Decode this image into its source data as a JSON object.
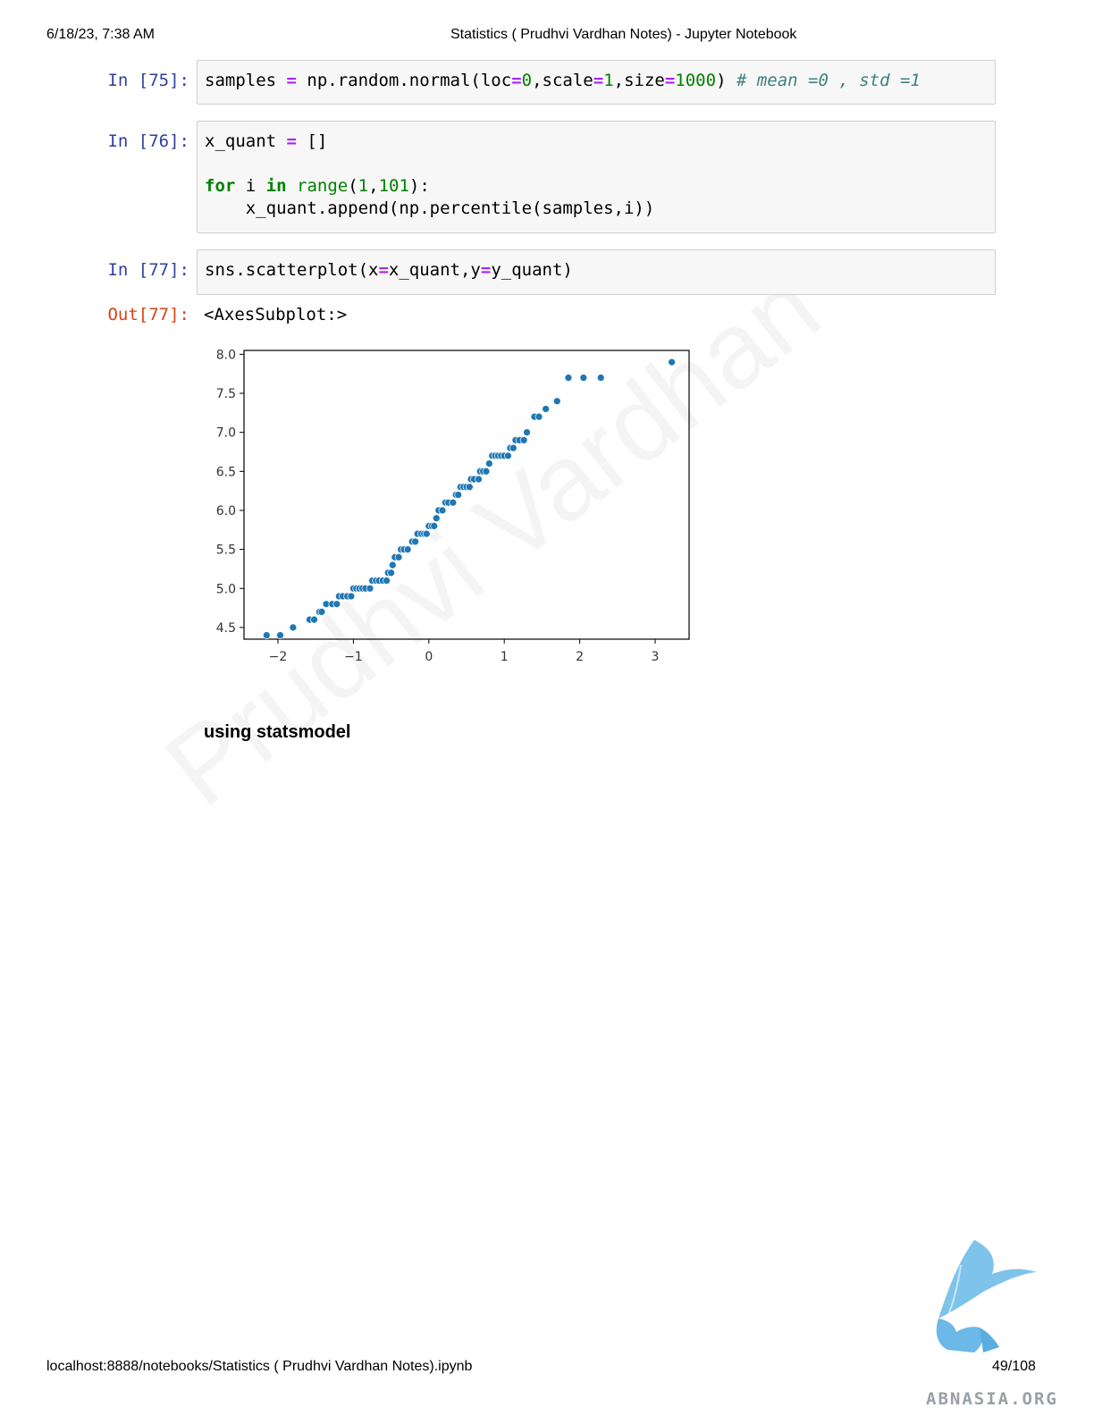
{
  "header": {
    "datetime": "6/18/23, 7:38 AM",
    "title": "Statistics ( Prudhvi Vardhan Notes) - Jupyter Notebook"
  },
  "footer": {
    "url": "localhost:8888/notebooks/Statistics ( Prudhvi Vardhan Notes).ipynb",
    "page": "49/108"
  },
  "cells": [
    {
      "prompt": "In [75]:"
    },
    {
      "prompt": "In [76]:"
    },
    {
      "prompt": "In [77]:"
    }
  ],
  "output": {
    "prompt": "Out[77]:",
    "text": "<AxesSubplot:>"
  },
  "markdown_heading": "using statsmodel",
  "watermark": "Prudhvi Vardhan",
  "logo_text": "ABNASIA.ORG",
  "chart_data": {
    "type": "scatter",
    "title": "",
    "xlabel": "",
    "ylabel": "",
    "xlim": [
      -2.45,
      3.45
    ],
    "ylim": [
      4.35,
      8.05
    ],
    "xticks": [
      -2,
      -1,
      0,
      1,
      2,
      3
    ],
    "xtick_labels": [
      "−2",
      "−1",
      "0",
      "1",
      "2",
      "3"
    ],
    "yticks": [
      4.5,
      5.0,
      5.5,
      6.0,
      6.5,
      7.0,
      7.5,
      8.0
    ],
    "ytick_labels": [
      "4.5",
      "5.0",
      "5.5",
      "6.0",
      "6.5",
      "7.0",
      "7.5",
      "8.0"
    ],
    "marker_color": "#1f77b4",
    "grid": false,
    "points": [
      {
        "x": -2.15,
        "y": 4.4
      },
      {
        "x": -1.97,
        "y": 4.4
      },
      {
        "x": -1.8,
        "y": 4.5
      },
      {
        "x": -1.58,
        "y": 4.6
      },
      {
        "x": -1.52,
        "y": 4.6
      },
      {
        "x": -1.45,
        "y": 4.7
      },
      {
        "x": -1.42,
        "y": 4.7
      },
      {
        "x": -1.36,
        "y": 4.8
      },
      {
        "x": -1.28,
        "y": 4.8
      },
      {
        "x": -1.22,
        "y": 4.8
      },
      {
        "x": -1.19,
        "y": 4.9
      },
      {
        "x": -1.14,
        "y": 4.9
      },
      {
        "x": -1.08,
        "y": 4.9
      },
      {
        "x": -1.03,
        "y": 4.9
      },
      {
        "x": -1.0,
        "y": 5.0
      },
      {
        "x": -0.96,
        "y": 5.0
      },
      {
        "x": -0.92,
        "y": 5.0
      },
      {
        "x": -0.88,
        "y": 5.0
      },
      {
        "x": -0.84,
        "y": 5.0
      },
      {
        "x": -0.78,
        "y": 5.0
      },
      {
        "x": -0.75,
        "y": 5.1
      },
      {
        "x": -0.7,
        "y": 5.1
      },
      {
        "x": -0.66,
        "y": 5.1
      },
      {
        "x": -0.61,
        "y": 5.1
      },
      {
        "x": -0.56,
        "y": 5.1
      },
      {
        "x": -0.54,
        "y": 5.2
      },
      {
        "x": -0.5,
        "y": 5.2
      },
      {
        "x": -0.48,
        "y": 5.3
      },
      {
        "x": -0.45,
        "y": 5.4
      },
      {
        "x": -0.4,
        "y": 5.4
      },
      {
        "x": -0.37,
        "y": 5.5
      },
      {
        "x": -0.33,
        "y": 5.5
      },
      {
        "x": -0.28,
        "y": 5.5
      },
      {
        "x": -0.22,
        "y": 5.6
      },
      {
        "x": -0.18,
        "y": 5.6
      },
      {
        "x": -0.15,
        "y": 5.7
      },
      {
        "x": -0.1,
        "y": 5.7
      },
      {
        "x": -0.06,
        "y": 5.7
      },
      {
        "x": -0.03,
        "y": 5.7
      },
      {
        "x": 0.0,
        "y": 5.8
      },
      {
        "x": 0.04,
        "y": 5.8
      },
      {
        "x": 0.07,
        "y": 5.8
      },
      {
        "x": 0.1,
        "y": 5.9
      },
      {
        "x": 0.13,
        "y": 6.0
      },
      {
        "x": 0.18,
        "y": 6.0
      },
      {
        "x": 0.22,
        "y": 6.1
      },
      {
        "x": 0.26,
        "y": 6.1
      },
      {
        "x": 0.32,
        "y": 6.1
      },
      {
        "x": 0.36,
        "y": 6.2
      },
      {
        "x": 0.39,
        "y": 6.2
      },
      {
        "x": 0.42,
        "y": 6.3
      },
      {
        "x": 0.46,
        "y": 6.3
      },
      {
        "x": 0.5,
        "y": 6.3
      },
      {
        "x": 0.54,
        "y": 6.3
      },
      {
        "x": 0.56,
        "y": 6.4
      },
      {
        "x": 0.6,
        "y": 6.4
      },
      {
        "x": 0.66,
        "y": 6.4
      },
      {
        "x": 0.68,
        "y": 6.5
      },
      {
        "x": 0.72,
        "y": 6.5
      },
      {
        "x": 0.76,
        "y": 6.5
      },
      {
        "x": 0.8,
        "y": 6.6
      },
      {
        "x": 0.84,
        "y": 6.7
      },
      {
        "x": 0.88,
        "y": 6.7
      },
      {
        "x": 0.92,
        "y": 6.7
      },
      {
        "x": 0.96,
        "y": 6.7
      },
      {
        "x": 1.0,
        "y": 6.7
      },
      {
        "x": 1.05,
        "y": 6.7
      },
      {
        "x": 1.08,
        "y": 6.8
      },
      {
        "x": 1.12,
        "y": 6.8
      },
      {
        "x": 1.15,
        "y": 6.9
      },
      {
        "x": 1.2,
        "y": 6.9
      },
      {
        "x": 1.26,
        "y": 6.9
      },
      {
        "x": 1.3,
        "y": 7.0
      },
      {
        "x": 1.4,
        "y": 7.2
      },
      {
        "x": 1.46,
        "y": 7.2
      },
      {
        "x": 1.55,
        "y": 7.3
      },
      {
        "x": 1.7,
        "y": 7.4
      },
      {
        "x": 1.85,
        "y": 7.7
      },
      {
        "x": 2.05,
        "y": 7.7
      },
      {
        "x": 2.28,
        "y": 7.7
      },
      {
        "x": 3.22,
        "y": 7.9
      }
    ]
  }
}
